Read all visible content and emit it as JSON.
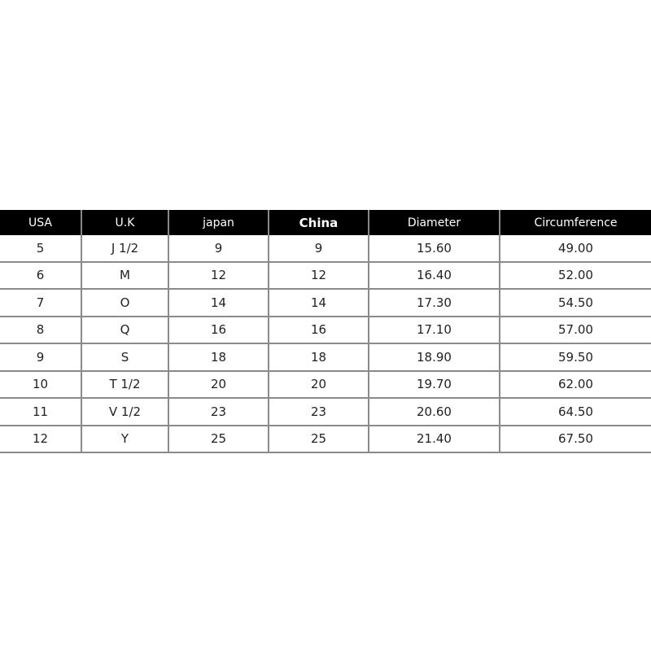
{
  "table": {
    "headers": [
      "USA",
      "U.K",
      "japan",
      "China",
      "Diameter",
      "Circumference"
    ],
    "rows": [
      [
        "5",
        "J 1/2",
        "9",
        "9",
        "15.60",
        "49.00"
      ],
      [
        "6",
        "M",
        "12",
        "12",
        "16.40",
        "52.00"
      ],
      [
        "7",
        "O",
        "14",
        "14",
        "17.30",
        "54.50"
      ],
      [
        "8",
        "Q",
        "16",
        "16",
        "17.10",
        "57.00"
      ],
      [
        "9",
        "S",
        "18",
        "18",
        "18.90",
        "59.50"
      ],
      [
        "10",
        "T 1/2",
        "20",
        "20",
        "19.70",
        "62.00"
      ],
      [
        "11",
        "V 1/2",
        "23",
        "23",
        "20.60",
        "64.50"
      ],
      [
        "12",
        "Y",
        "25",
        "25",
        "21.40",
        "67.50"
      ]
    ]
  }
}
